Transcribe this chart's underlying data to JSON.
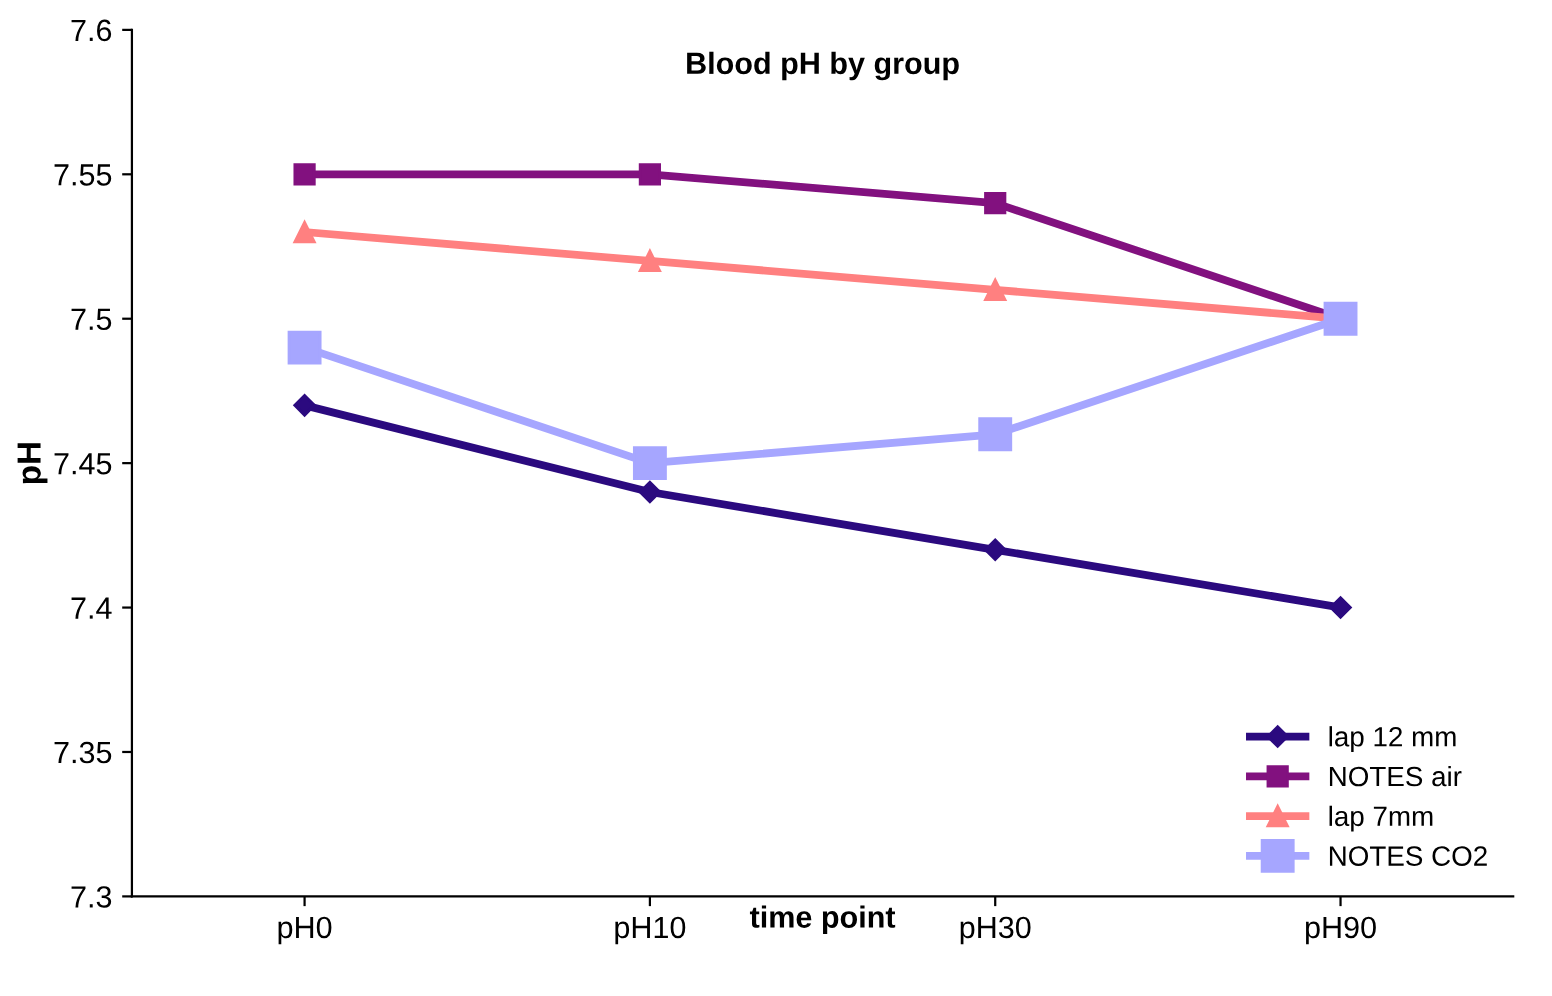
{
  "chart_data": {
    "type": "line",
    "title": "Blood pH by group",
    "xlabel": "time point",
    "ylabel": "pH",
    "categories": [
      "pH0",
      "pH10",
      "pH30",
      "pH90"
    ],
    "series": [
      {
        "name": "lap 12 mm",
        "color": "#2b0a7f",
        "marker": "diamond",
        "values": [
          7.47,
          7.44,
          7.42,
          7.4
        ]
      },
      {
        "name": "NOTES air",
        "color": "#82117f",
        "marker": "square",
        "values": [
          7.55,
          7.55,
          7.54,
          7.5
        ]
      },
      {
        "name": "lap 7mm",
        "color": "#ff8080",
        "marker": "triangle",
        "values": [
          7.53,
          7.52,
          7.51,
          7.5
        ]
      },
      {
        "name": "NOTES CO2",
        "color": "#a6a6ff",
        "marker": "square",
        "values": [
          7.49,
          7.45,
          7.46,
          7.5
        ]
      }
    ],
    "ylim": [
      7.3,
      7.6
    ],
    "yticks": [
      7.3,
      7.35,
      7.4,
      7.45,
      7.5,
      7.55,
      7.6
    ],
    "grid": false,
    "legend": "bottom right",
    "line_style": "solid"
  }
}
